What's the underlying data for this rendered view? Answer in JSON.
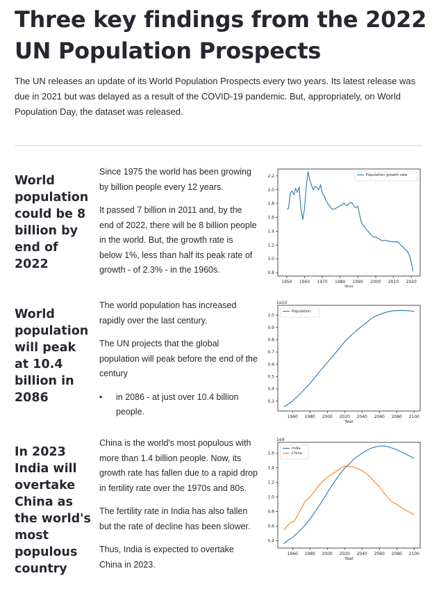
{
  "title": "Three key findings from the 2022 UN Population Prospects",
  "intro": "The UN releases an update of its World Population Prospects every two years. Its latest release was due in 2021 but was delayed as a result of the COVID-19 pandemic. But, appropriately, on World Population Day, the dataset was released.",
  "sections": [
    {
      "heading": "World population could be 8 billion by end of 2022",
      "paragraphs": [
        "Since 1975 the world has been growing by billion people every 12 years.",
        "It passed 7 billion in 2011 and, by the end of 2022, there will be 8 billion people in the world. But, the growth rate is below 1%, less than half its peak rate of growth - of 2.3% - in the 1960s."
      ]
    },
    {
      "heading": "World population will peak at 10.4 billion in 2086",
      "paragraphs": [
        "The world population has increased rapidly over the last century.",
        "The UN projects that the global population will peak before the end of the century"
      ],
      "bullets": [
        "in 2086 - at just over 10.4 billion people."
      ],
      "bullet_symbol": "•"
    },
    {
      "heading": "In 2023 India will overtake China as the world's most populous country",
      "paragraphs": [
        "China is the world's most populous with more than 1.4 billion people. Now, its growth rate has fallen due to a rapid drop in fertility rate over the 1970s and 80s.",
        "The fertility rate in India has also fallen but the rate of decline has been slower.",
        "Thus, India is expected to overtake China in 2023."
      ]
    }
  ],
  "chart_data": [
    {
      "type": "line",
      "title": "",
      "xlabel": "Year",
      "ylabel": "",
      "xlim": [
        1945,
        2025
      ],
      "ylim": [
        0.75,
        2.3
      ],
      "xticks": [
        1950,
        1960,
        1970,
        1980,
        1990,
        2000,
        2010,
        2020
      ],
      "yticks": [
        "0.8",
        "1.0",
        "1.2",
        "1.4",
        "1.6",
        "1.8",
        "2.0",
        "2.2"
      ],
      "legend": "upper right",
      "series": [
        {
          "name": "Population growth rate",
          "color": "#1f77b4",
          "x": [
            1950,
            1951,
            1952,
            1953,
            1954,
            1955,
            1956,
            1957,
            1958,
            1959,
            1960,
            1961,
            1962,
            1963,
            1964,
            1965,
            1966,
            1967,
            1968,
            1969,
            1970,
            1971,
            1972,
            1973,
            1974,
            1975,
            1976,
            1977,
            1978,
            1979,
            1980,
            1981,
            1982,
            1983,
            1984,
            1985,
            1986,
            1987,
            1988,
            1989,
            1990,
            1991,
            1992,
            1993,
            1994,
            1995,
            1996,
            1997,
            1998,
            1999,
            2000,
            2001,
            2002,
            2003,
            2004,
            2005,
            2006,
            2007,
            2008,
            2009,
            2010,
            2011,
            2012,
            2013,
            2014,
            2015,
            2016,
            2017,
            2018,
            2019,
            2020,
            2021
          ],
          "y": [
            1.72,
            1.73,
            1.95,
            1.98,
            1.93,
            2.02,
            1.96,
            2.04,
            1.72,
            1.57,
            1.73,
            2.05,
            2.26,
            2.14,
            2.06,
            2.0,
            2.05,
            2.03,
            2.0,
            2.07,
            1.95,
            1.92,
            1.85,
            1.8,
            1.77,
            1.73,
            1.72,
            1.72,
            1.74,
            1.75,
            1.77,
            1.78,
            1.81,
            1.78,
            1.77,
            1.8,
            1.82,
            1.8,
            1.75,
            1.74,
            1.76,
            1.63,
            1.53,
            1.48,
            1.45,
            1.42,
            1.39,
            1.36,
            1.33,
            1.31,
            1.32,
            1.3,
            1.29,
            1.27,
            1.26,
            1.27,
            1.26,
            1.26,
            1.25,
            1.25,
            1.25,
            1.24,
            1.25,
            1.23,
            1.2,
            1.18,
            1.15,
            1.13,
            1.1,
            1.05,
            0.95,
            0.82
          ]
        }
      ]
    },
    {
      "type": "line",
      "title": "",
      "xlabel": "Year",
      "ylabel": "",
      "offset_label": "1e10",
      "xlim": [
        1943,
        2107
      ],
      "ylim": [
        0.22,
        1.08
      ],
      "xticks": [
        1960,
        1980,
        2000,
        2020,
        2040,
        2060,
        2080,
        2100
      ],
      "yticks": [
        "0.3",
        "0.4",
        "0.5",
        "0.6",
        "0.7",
        "0.8",
        "0.9",
        "1.0"
      ],
      "legend": "upper left",
      "series": [
        {
          "name": "Population",
          "color": "#1f77b4",
          "x": [
            1950,
            1955,
            1960,
            1965,
            1970,
            1975,
            1980,
            1985,
            1990,
            1995,
            2000,
            2005,
            2010,
            2015,
            2020,
            2025,
            2030,
            2035,
            2040,
            2045,
            2050,
            2055,
            2060,
            2065,
            2070,
            2075,
            2080,
            2085,
            2090,
            2095,
            2100
          ],
          "y": [
            0.254,
            0.277,
            0.302,
            0.334,
            0.37,
            0.407,
            0.444,
            0.486,
            0.533,
            0.574,
            0.615,
            0.655,
            0.698,
            0.739,
            0.784,
            0.819,
            0.853,
            0.883,
            0.912,
            0.937,
            0.97,
            0.99,
            1.004,
            1.018,
            1.028,
            1.035,
            1.037,
            1.038,
            1.037,
            1.035,
            1.03
          ]
        }
      ]
    },
    {
      "type": "line",
      "title": "",
      "xlabel": "Year",
      "ylabel": "",
      "offset_label": "1e9",
      "xlim": [
        1943,
        2107
      ],
      "ylim": [
        0.3,
        1.75
      ],
      "xticks": [
        1960,
        1980,
        2000,
        2020,
        2040,
        2060,
        2080,
        2100
      ],
      "yticks": [
        "0.4",
        "0.6",
        "0.8",
        "1.0",
        "1.2",
        "1.4",
        "1.6"
      ],
      "legend": "upper left",
      "series": [
        {
          "name": "India",
          "color": "#1f77b4",
          "x": [
            1950,
            1955,
            1960,
            1965,
            1970,
            1975,
            1980,
            1985,
            1990,
            1995,
            2000,
            2005,
            2010,
            2015,
            2020,
            2025,
            2030,
            2035,
            2040,
            2045,
            2050,
            2055,
            2060,
            2065,
            2070,
            2075,
            2080,
            2085,
            2090,
            2095,
            2100
          ],
          "y": [
            0.357,
            0.41,
            0.445,
            0.5,
            0.557,
            0.623,
            0.697,
            0.78,
            0.87,
            0.96,
            1.06,
            1.15,
            1.24,
            1.32,
            1.396,
            1.45,
            1.514,
            1.56,
            1.6,
            1.635,
            1.668,
            1.685,
            1.7,
            1.7,
            1.69,
            1.67,
            1.65,
            1.62,
            1.59,
            1.56,
            1.53
          ]
        },
        {
          "name": "China",
          "color": "#ff7f0e",
          "x": [
            1950,
            1953,
            1956,
            1958,
            1960,
            1962,
            1965,
            1970,
            1973,
            1975,
            1980,
            1985,
            1990,
            1995,
            2000,
            2005,
            2010,
            2015,
            2020,
            2022,
            2025,
            2030,
            2035,
            2040,
            2045,
            2050,
            2055,
            2060,
            2065,
            2070,
            2075,
            2080,
            2085,
            2090,
            2095,
            2100
          ],
          "y": [
            0.545,
            0.59,
            0.63,
            0.655,
            0.66,
            0.67,
            0.73,
            0.84,
            0.91,
            0.945,
            1.0,
            1.07,
            1.16,
            1.22,
            1.27,
            1.31,
            1.35,
            1.39,
            1.424,
            1.426,
            1.42,
            1.41,
            1.39,
            1.36,
            1.32,
            1.27,
            1.2,
            1.14,
            1.06,
            0.99,
            0.93,
            0.9,
            0.86,
            0.82,
            0.79,
            0.76
          ]
        }
      ]
    }
  ]
}
